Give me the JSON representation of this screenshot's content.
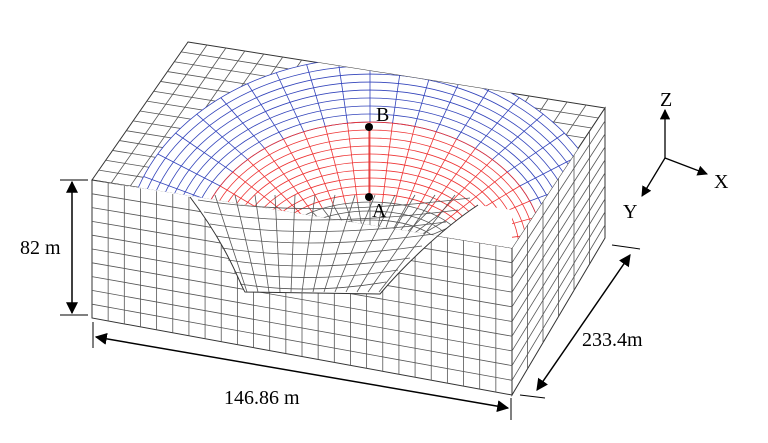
{
  "dimensions": {
    "height": "82 m",
    "width": "146.86 m",
    "depth": "233.4m"
  },
  "points": {
    "a": "A",
    "b": "B"
  },
  "axes": {
    "x": "X",
    "y": "Y",
    "z": "Z"
  }
}
